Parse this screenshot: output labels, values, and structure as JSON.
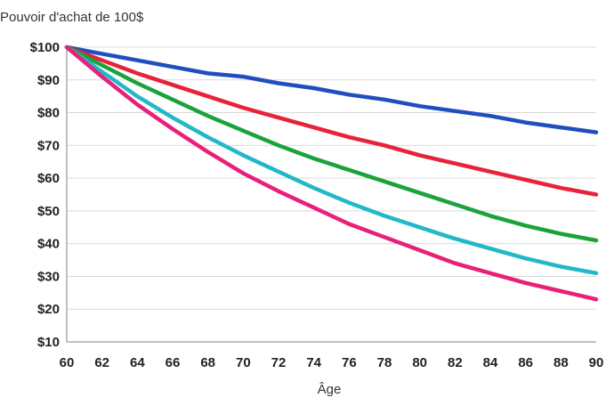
{
  "chart_data": {
    "type": "line",
    "title": "Pouvoir d'achat de 100$",
    "xlabel": "Âge",
    "ylabel": "",
    "xlim": [
      60,
      90
    ],
    "ylim": [
      10,
      100
    ],
    "grid": true,
    "x": [
      60,
      62,
      64,
      66,
      68,
      70,
      72,
      74,
      76,
      78,
      80,
      82,
      84,
      86,
      88,
      90
    ],
    "x_tick_labels": [
      "60",
      "62",
      "64",
      "66",
      "68",
      "70",
      "72",
      "74",
      "76",
      "78",
      "80",
      "82",
      "84",
      "86",
      "88",
      "90"
    ],
    "y_ticks": [
      100,
      90,
      80,
      70,
      60,
      50,
      40,
      30,
      20,
      10
    ],
    "y_tick_labels": [
      "$100",
      "$90",
      "$80",
      "$70",
      "$60",
      "$50",
      "$40",
      "$30",
      "$20",
      "$10"
    ],
    "series": [
      {
        "color": "#1f4fbf",
        "values": [
          100,
          98,
          96,
          94,
          92,
          91,
          89,
          87.5,
          85.5,
          84,
          82,
          80.5,
          79,
          77,
          75.5,
          74
        ]
      },
      {
        "color": "#e8223a",
        "values": [
          100,
          96,
          92,
          88.5,
          85,
          81.5,
          78.5,
          75.5,
          72.5,
          70,
          67,
          64.5,
          62,
          59.5,
          57,
          55
        ]
      },
      {
        "color": "#1aa33c",
        "values": [
          100,
          94.5,
          89,
          84,
          79,
          74.5,
          70,
          66,
          62.5,
          59,
          55.5,
          52,
          48.5,
          45.5,
          43,
          41
        ]
      },
      {
        "color": "#22b8c8",
        "values": [
          100,
          92.5,
          85,
          78.5,
          72.5,
          67,
          62,
          57,
          52.5,
          48.5,
          45,
          41.5,
          38.5,
          35.5,
          33,
          31
        ]
      },
      {
        "color": "#e8207a",
        "values": [
          100,
          91,
          82.5,
          75,
          68,
          61.5,
          56,
          51,
          46,
          42,
          38,
          34,
          31,
          28,
          25.5,
          23
        ]
      }
    ]
  }
}
